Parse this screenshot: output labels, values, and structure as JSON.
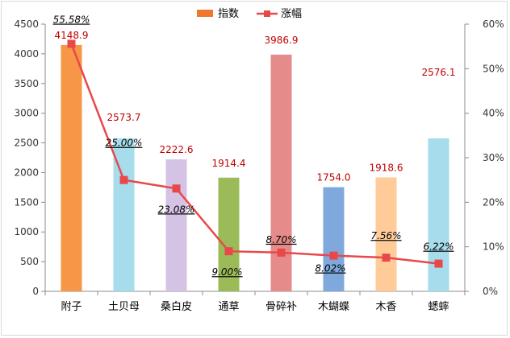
{
  "chart_data": {
    "type": "bar+line",
    "categories": [
      "附子",
      "土贝母",
      "桑白皮",
      "通草",
      "骨碎补",
      "木蝴蝶",
      "木香",
      "蟋蟀"
    ],
    "series": [
      {
        "name": "指数",
        "kind": "bar",
        "axis": "left",
        "values": [
          4148.9,
          2573.7,
          2222.6,
          1914.4,
          3986.9,
          1754.0,
          1918.6,
          2576.1
        ],
        "labels": [
          "4148.9",
          "2573.7",
          "2222.6",
          "1914.4",
          "3986.9",
          "1754.0",
          "1918.6",
          "2576.1"
        ],
        "colors": [
          "#F79646",
          "#A6DCEB",
          "#D5C3E6",
          "#9BBB59",
          "#E58C8A",
          "#7FA8DC",
          "#FFCC99",
          "#A6DCEB"
        ]
      },
      {
        "name": "涨幅",
        "kind": "line",
        "axis": "right",
        "values": [
          55.58,
          25.0,
          23.08,
          9.0,
          8.7,
          8.02,
          7.56,
          6.22
        ],
        "labels": [
          "55.58%",
          "25.00%",
          "23.08%",
          "9.00%",
          "8.70%",
          "8.02%",
          "7.56%",
          "6.22%"
        ],
        "color": "#E8484A"
      }
    ],
    "y_left": {
      "min": 0,
      "max": 4500,
      "step": 500,
      "ticks": [
        "0",
        "500",
        "1000",
        "1500",
        "2000",
        "2500",
        "3000",
        "3500",
        "4000",
        "4500"
      ]
    },
    "y_right": {
      "min": 0,
      "max": 60,
      "step": 10,
      "ticks": [
        "0%",
        "10%",
        "20%",
        "30%",
        "40%",
        "50%",
        "60%"
      ]
    },
    "legend": {
      "placement": "top",
      "items": [
        "指数",
        "涨幅"
      ],
      "bar_color": "#F0782E",
      "line_color": "#E8484A"
    },
    "grid": false
  }
}
